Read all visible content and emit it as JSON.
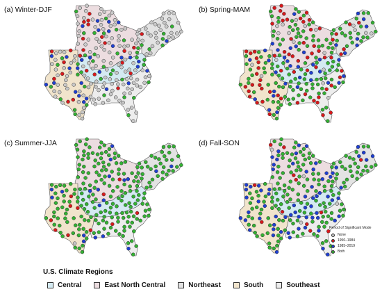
{
  "panels": [
    {
      "title": "(a) Winter-DJF",
      "mix": {
        "None": 0.62,
        "1950–1984": 0.1,
        "1985–2019": 0.1,
        "Both": 0.18
      }
    },
    {
      "title": "(b) Spring-MAM",
      "mix": {
        "None": 0.05,
        "1950–1984": 0.28,
        "1985–2019": 0.17,
        "Both": 0.5
      }
    },
    {
      "title": "(c) Summer-JJA",
      "mix": {
        "None": 0.02,
        "1950–1984": 0.06,
        "1985–2019": 0.05,
        "Both": 0.87
      }
    },
    {
      "title": "(d) Fall-SON",
      "mix": {
        "None": 0.02,
        "1950–1984": 0.04,
        "1985–2019": 0.24,
        "Both": 0.7
      }
    }
  ],
  "mode_legend": {
    "title": "Period of Significant Mode",
    "items": [
      {
        "label": "None",
        "color": "#c8c8c8"
      },
      {
        "label": "1950–1984",
        "color": "#d7191c"
      },
      {
        "label": "1985–2019",
        "color": "#1f3fd1"
      },
      {
        "label": "Both",
        "color": "#33b033"
      }
    ]
  },
  "region_legend": {
    "title": "U.S. Climate Regions",
    "items": [
      {
        "label": "Central",
        "color": "#d4eaf2"
      },
      {
        "label": "East North Central",
        "color": "#ecdde0"
      },
      {
        "label": "Northeast",
        "color": "#e3e3e3"
      },
      {
        "label": "South",
        "color": "#f1e4cc"
      },
      {
        "label": "Southeast",
        "color": "#ededed"
      }
    ]
  }
}
